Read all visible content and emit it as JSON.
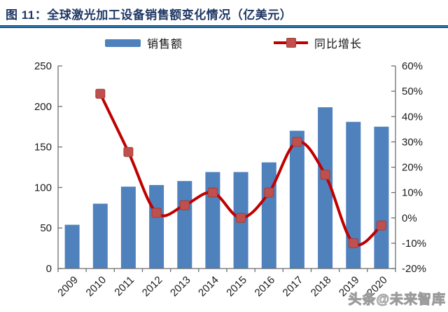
{
  "header": {
    "title": "图 11：全球激光加工设备销售额变化情况（亿美元）"
  },
  "legend": {
    "sales_label": "销售额",
    "growth_label": "同比增长"
  },
  "watermark": {
    "text": "头条@未来智库"
  },
  "colors": {
    "bar": "#4F81BD",
    "line": "#C00000",
    "marker": "#C0504D",
    "marker_border": "#A03E3B",
    "axis": "#6E6E6E",
    "tick_text": "#1a1a1a",
    "title": "#1F3864"
  },
  "chart_data": {
    "type": "bar",
    "combo": "bar+line",
    "title": "全球激光加工设备销售额变化情况（亿美元）",
    "categories": [
      "2009",
      "2010",
      "2011",
      "2012",
      "2013",
      "2014",
      "2015",
      "2016",
      "2017",
      "2018",
      "2019",
      "2020"
    ],
    "series": [
      {
        "name": "销售额",
        "type": "bar",
        "axis": "left",
        "color": "#4F81BD",
        "values": [
          54,
          80,
          101,
          103,
          108,
          119,
          119,
          131,
          170,
          199,
          181,
          175
        ]
      },
      {
        "name": "同比增长",
        "type": "line",
        "axis": "right",
        "color": "#C00000",
        "marker_color": "#C0504D",
        "values": [
          null,
          49,
          26,
          2,
          5,
          10,
          0,
          10,
          30,
          17,
          -10,
          -3
        ]
      }
    ],
    "y_left": {
      "min": 0,
      "max": 250,
      "tick_values": [
        0,
        50,
        100,
        150,
        200,
        250
      ],
      "tick_labels": [
        "0",
        "50",
        "100",
        "150",
        "200",
        "250"
      ]
    },
    "y_right": {
      "min": -20,
      "max": 60,
      "tick_values": [
        -20,
        -10,
        0,
        10,
        20,
        30,
        40,
        50,
        60
      ],
      "tick_labels": [
        "-20%",
        "-10%",
        "0%",
        "10%",
        "20%",
        "30%",
        "40%",
        "50%",
        "60%"
      ]
    },
    "grid": false,
    "legend_position": "top",
    "line_smooth": true
  }
}
